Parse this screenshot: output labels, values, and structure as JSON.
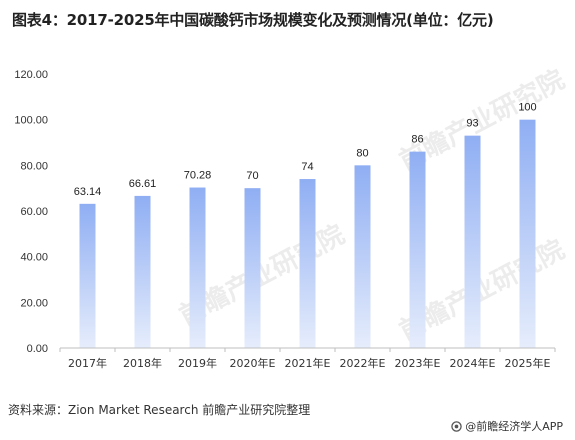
{
  "title": "图表4：2017-2025年中国碳酸钙市场规模变化及预测情况(单位：亿元)",
  "source": "资料来源：Zion Market Research 前瞻产业研究院整理",
  "brand": "@前瞻经济学人APP",
  "watermark": "前瞻产业研究院",
  "colors": {
    "bar_top": "#8faef3",
    "bar_bottom": "#e6edfc",
    "axis": "#bfbfbf"
  },
  "chart_data": {
    "type": "bar",
    "categories": [
      "2017年",
      "2018年",
      "2019年",
      "2020年E",
      "2021年E",
      "2022年E",
      "2023年E",
      "2024年E",
      "2025年E"
    ],
    "values": [
      63.14,
      66.61,
      70.28,
      70,
      74,
      80,
      86,
      93,
      100
    ],
    "value_labels": [
      "63.14",
      "66.61",
      "70.28",
      "70",
      "74",
      "80",
      "86",
      "93",
      "100"
    ],
    "ylim": [
      0,
      120
    ],
    "yticks": [
      "0.00",
      "20.00",
      "40.00",
      "60.00",
      "80.00",
      "100.00",
      "120.00"
    ],
    "grid": false,
    "legend": "none"
  }
}
